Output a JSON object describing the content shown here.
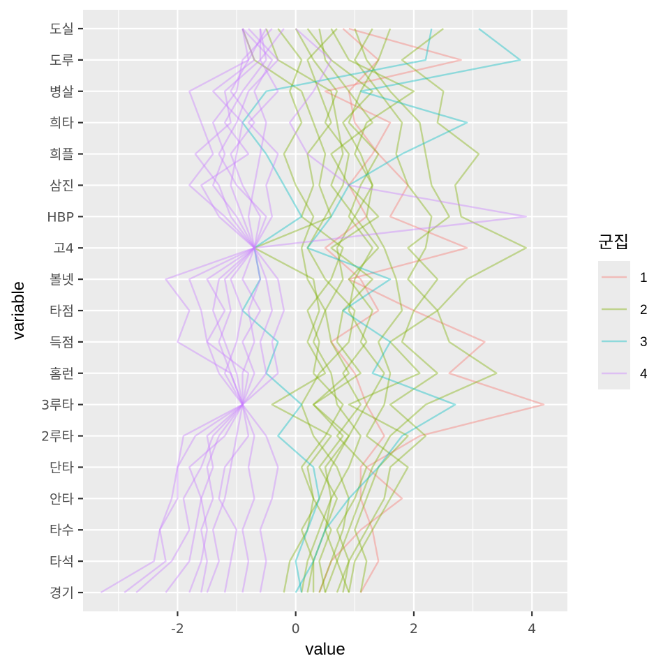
{
  "chart_data": {
    "type": "line",
    "subtype": "parallel-coordinates (lines drawn across variables, one per player)",
    "title": "",
    "xlabel": "value",
    "ylabel": "variable",
    "xlim": [
      -3.6,
      4.6
    ],
    "x_ticks": [
      -2,
      0,
      2,
      4
    ],
    "x_tick_labels": [
      "-2",
      "0",
      "2",
      "4"
    ],
    "grid": true,
    "legend": {
      "title": "군집",
      "placement": "right",
      "entries": [
        "1",
        "2",
        "3",
        "4"
      ]
    },
    "variables": [
      "경기",
      "타석",
      "타수",
      "안타",
      "단타",
      "2루타",
      "3루타",
      "홈런",
      "득점",
      "타점",
      "볼넷",
      "고4",
      "HBP",
      "삼진",
      "희플",
      "희타",
      "병살",
      "도루",
      "도실"
    ],
    "series": [
      {
        "name": "1",
        "color": "#F8766D",
        "values": [
          [
            0.4,
            0.6,
            1.1,
            1.8,
            1.2,
            2.1,
            4.2,
            2.6,
            3.2,
            2.0,
            0.9,
            2.9,
            1.6,
            1.9,
            1.4,
            1.0,
            0.9,
            1.4,
            0.8
          ],
          [
            1.1,
            1.4,
            1.3,
            1.1,
            1.1,
            1.5,
            1.2,
            1.0,
            0.6,
            1.4,
            1.1,
            0.5,
            1.2,
            0.9,
            1.3,
            1.6,
            0.5,
            2.8,
            0.9
          ]
        ]
      },
      {
        "name": "2",
        "color": "#7CAE00",
        "values": [
          [
            0.1,
            0.2,
            0.4,
            0.6,
            0.5,
            0.9,
            1.2,
            1.5,
            1.1,
            1.3,
            0.9,
            1.4,
            1.0,
            1.3,
            1.1,
            0.8,
            1.3,
            0.6,
            0.2
          ],
          [
            0.5,
            0.7,
            0.9,
            1.1,
            1.3,
            1.6,
            2.2,
            3.4,
            2.6,
            2.4,
            2.9,
            3.9,
            2.8,
            2.7,
            3.1,
            2.4,
            2.5,
            1.8,
            2.5
          ],
          [
            0.7,
            0.9,
            1.2,
            1.5,
            1.6,
            2.2,
            1.6,
            2.4,
            1.8,
            2.0,
            2.4,
            1.9,
            2.6,
            2.3,
            2.2,
            2.1,
            1.6,
            1.2,
            1.0
          ],
          [
            0.3,
            0.3,
            0.5,
            0.7,
            0.4,
            0.8,
            0.3,
            0.9,
            0.6,
            0.5,
            0.8,
            0.7,
            1.0,
            0.6,
            0.8,
            0.7,
            0.6,
            -0.3,
            -0.5
          ],
          [
            0.9,
            1.0,
            1.3,
            1.6,
            1.9,
            1.2,
            1.5,
            1.6,
            1.4,
            1.8,
            1.7,
            1.5,
            1.2,
            1.3,
            1.0,
            1.2,
            2.0,
            0.9,
            0.6
          ],
          [
            0.5,
            0.4,
            0.6,
            0.3,
            0.2,
            0.6,
            -0.4,
            0.5,
            0.2,
            0.4,
            0.3,
            -0.7,
            0.6,
            0.4,
            0.5,
            0.3,
            0.1,
            -0.7,
            -0.9
          ],
          [
            1.1,
            1.2,
            1.0,
            1.2,
            1.4,
            1.9,
            0.9,
            2.1,
            1.6,
            2.4,
            1.9,
            2.2,
            2.3,
            1.9,
            1.7,
            1.8,
            1.4,
            1.0,
            1.3
          ],
          [
            0.4,
            0.6,
            0.8,
            0.9,
            0.7,
            0.3,
            0.1,
            0.4,
            0.9,
            1.0,
            0.5,
            0.2,
            0.5,
            0.8,
            0.9,
            0.5,
            0.7,
            0.3,
            0.0
          ],
          [
            -0.2,
            -0.1,
            0.2,
            0.3,
            0.1,
            0.5,
            0.8,
            0.3,
            0.4,
            0.2,
            0.6,
            0.8,
            0.1,
            0.3,
            0.2,
            0.6,
            0.4,
            0.2,
            0.7
          ],
          [
            0.8,
            0.9,
            0.7,
            1.0,
            1.2,
            0.7,
            1.1,
            0.8,
            1.2,
            0.9,
            1.0,
            1.3,
            0.9,
            1.1,
            1.4,
            0.9,
            1.1,
            1.4,
            1.6
          ],
          [
            0.2,
            0.3,
            0.1,
            0.4,
            0.6,
            0.9,
            0.3,
            1.1,
            0.7,
            0.8,
            1.3,
            0.6,
            1.4,
            0.9,
            0.6,
            1.3,
            0.9,
            0.5,
            0.4
          ],
          [
            0.9,
            0.7,
            0.5,
            0.6,
            0.9,
            1.1,
            0.7,
            0.6,
            0.3,
            0.5,
            0.2,
            0.1,
            0.3,
            0.0,
            -0.2,
            0.1,
            -0.1,
            0.1,
            -0.3
          ]
        ]
      },
      {
        "name": "3",
        "color": "#00BFC4",
        "values": [
          [
            0.0,
            0.3,
            0.5,
            0.9,
            1.4,
            1.8,
            2.7,
            1.3,
            1.6,
            0.8,
            1.6,
            0.2,
            0.6,
            0.9,
            1.8,
            2.9,
            1.1,
            3.8,
            3.1
          ],
          [
            0.1,
            0.0,
            0.2,
            0.4,
            0.3,
            -0.3,
            0.1,
            -0.5,
            -0.3,
            -0.9,
            -0.6,
            -0.7,
            0.1,
            -0.2,
            -0.5,
            -0.9,
            -0.5,
            2.2,
            2.3
          ]
        ]
      },
      {
        "name": "4",
        "color": "#C77CFF",
        "values": [
          [
            -3.3,
            -2.4,
            -2.3,
            -2.1,
            -2.0,
            -1.9,
            -0.9,
            -1.1,
            -2.0,
            -1.8,
            -2.2,
            -0.7,
            -1.2,
            -1.8,
            -1.4,
            -1.6,
            -1.8,
            -0.8,
            -0.9
          ],
          [
            -2.9,
            -2.2,
            -2.3,
            -2.0,
            -2.0,
            -1.7,
            -0.9,
            -1.3,
            -1.5,
            -1.6,
            -1.8,
            -0.7,
            -1.1,
            -1.3,
            -1.7,
            -1.1,
            -1.2,
            -0.6,
            -0.6
          ],
          [
            -2.7,
            -2.1,
            -1.8,
            -1.9,
            -1.6,
            -1.4,
            -0.9,
            -1.0,
            -1.2,
            -1.4,
            -1.3,
            -0.7,
            -1.0,
            -1.4,
            -1.2,
            -1.4,
            -1.0,
            -0.9,
            -0.4
          ],
          [
            -2.2,
            -1.8,
            -1.7,
            -1.6,
            -1.4,
            -1.5,
            -0.9,
            -0.8,
            -1.5,
            -1.2,
            -1.5,
            -0.7,
            -0.9,
            -1.1,
            -1.0,
            -0.9,
            -1.4,
            -0.7,
            -0.9
          ],
          [
            -1.8,
            -1.6,
            -1.5,
            -1.6,
            -1.8,
            -1.2,
            -0.9,
            -1.2,
            -1.0,
            -0.9,
            -1.1,
            -0.7,
            -1.3,
            -1.6,
            -0.8,
            -1.2,
            -0.9,
            -0.5,
            -0.6
          ],
          [
            -1.5,
            -1.3,
            -1.4,
            -1.2,
            -1.1,
            -1.0,
            -0.9,
            -0.9,
            -0.7,
            -0.8,
            -0.6,
            -0.7,
            -0.6,
            -0.9,
            -1.1,
            -0.7,
            -1.1,
            -0.8,
            -0.5
          ],
          [
            -1.2,
            -1.1,
            -1.0,
            -1.3,
            -1.2,
            -0.8,
            -0.9,
            -0.7,
            -0.9,
            -0.6,
            -0.9,
            -0.7,
            -0.8,
            -0.7,
            -0.6,
            -0.5,
            -0.7,
            -0.4,
            -0.9
          ],
          [
            -0.9,
            -0.8,
            -0.9,
            -0.7,
            -0.8,
            -0.7,
            -0.9,
            -0.5,
            -0.6,
            -0.4,
            -0.5,
            -0.7,
            -0.4,
            -0.5,
            -0.3,
            -0.8,
            -0.3,
            -0.6,
            -0.2
          ],
          [
            -0.6,
            -0.5,
            -0.6,
            -0.4,
            -0.3,
            -0.5,
            -0.9,
            -0.3,
            -0.4,
            -0.2,
            -0.3,
            -0.7,
            3.9,
            0.9,
            0.2,
            -0.1,
            0.3,
            0.6,
            0.0
          ],
          [
            -1.6,
            -1.5,
            -1.6,
            -1.4,
            -1.5,
            -1.3,
            -0.9,
            -1.1,
            -1.3,
            -1.1,
            -1.2,
            -0.7,
            -0.5,
            -1.0,
            -1.3,
            -1.0,
            -0.8,
            -0.3,
            -0.8
          ]
        ]
      }
    ]
  }
}
